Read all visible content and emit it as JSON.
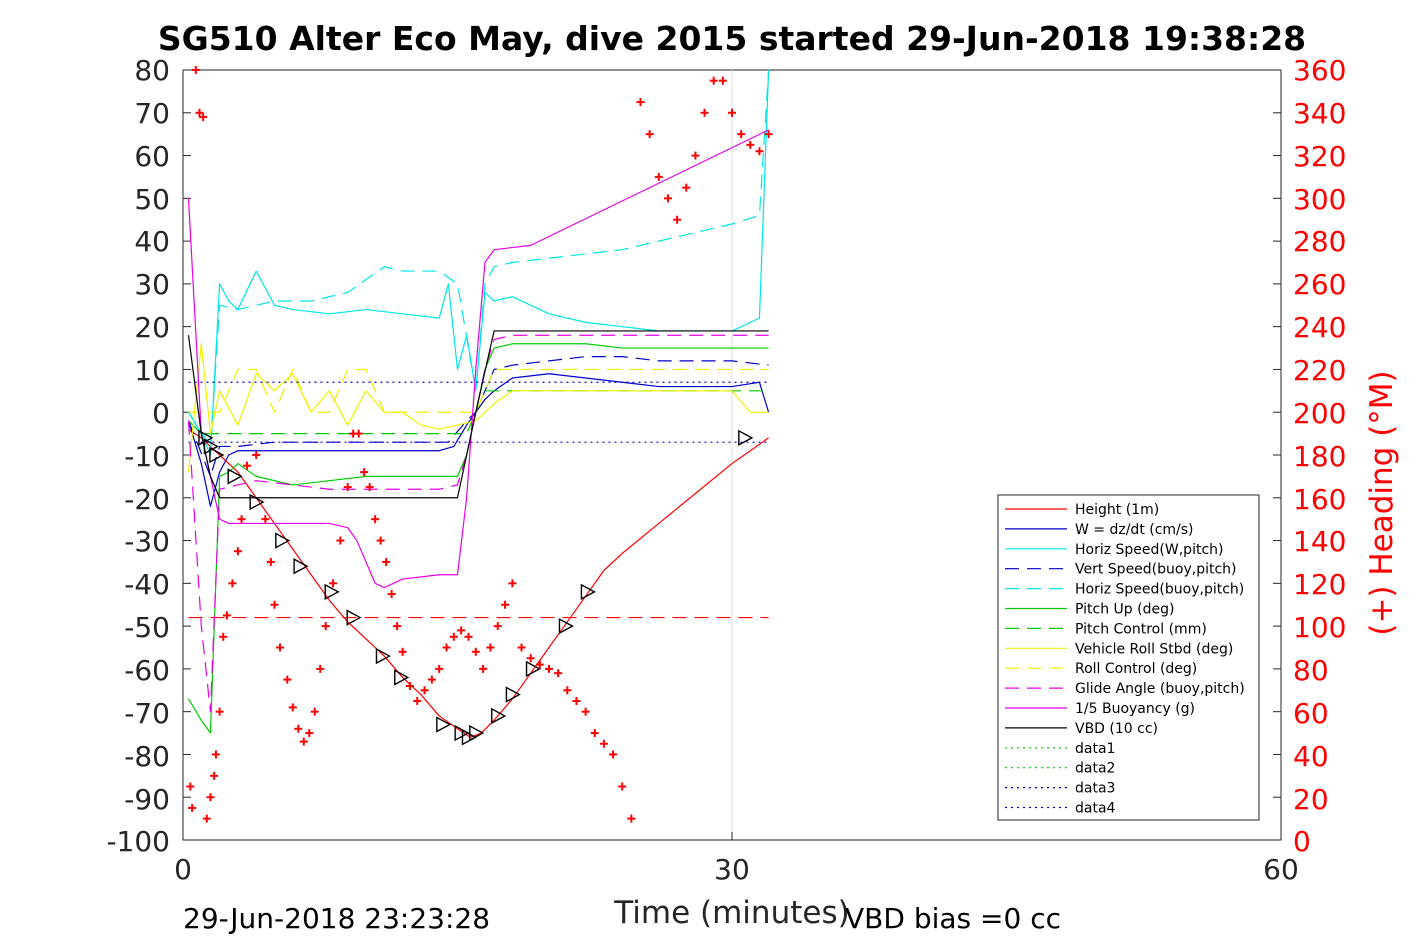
{
  "chart_data": {
    "type": "line",
    "title": "SG510 Alter Eco May, dive 2015 started 29-Jun-2018 19:38:28",
    "xlabel": "Time (minutes)",
    "ylabel": "",
    "ylabel_right": "(+) Heading (°M)",
    "xlim": [
      0,
      60
    ],
    "ylim": [
      -100,
      80
    ],
    "ylim_right": [
      0,
      360
    ],
    "xticks": [
      "0",
      "30",
      "60"
    ],
    "yticks": [
      "80",
      "70",
      "60",
      "50",
      "40",
      "30",
      "20",
      "10",
      "0",
      "-10",
      "-20",
      "-30",
      "-40",
      "-50",
      "-60",
      "-70",
      "-80",
      "-90",
      "-100"
    ],
    "yticks_right": [
      "360",
      "340",
      "320",
      "300",
      "280",
      "260",
      "240",
      "220",
      "200",
      "180",
      "160",
      "140",
      "120",
      "100",
      "80",
      "60",
      "40",
      "20",
      "0"
    ],
    "grid": "x-only",
    "legend_position": "lower-right",
    "footer_left": "29-Jun-2018 23:23:28",
    "footer_right": "VBD bias =0 cc",
    "series": [
      {
        "name": "Height (1m)",
        "color": "#ff0000",
        "style": "solid",
        "x": [
          0.3,
          1.0,
          1.5,
          2.0,
          3.0,
          4.0,
          5.0,
          6.0,
          7.0,
          8.0,
          9.0,
          10.0,
          11.0,
          12.0,
          13.0,
          14.0,
          15.0,
          15.7,
          16.3,
          17.0,
          18.0,
          19.0,
          20.0,
          21.0,
          22.0,
          23.0,
          24.0,
          26.0,
          28.0,
          30.0,
          31.0,
          32.0
        ],
        "y": [
          -4,
          -6,
          -8,
          -10,
          -14,
          -20,
          -26,
          -32,
          -38,
          -44,
          -49,
          -53,
          -57,
          -62,
          -66,
          -71,
          -74,
          -76,
          -75,
          -72,
          -67,
          -61,
          -55,
          -49,
          -43,
          -37,
          -33,
          -26,
          -19,
          -12,
          -9,
          -6
        ]
      },
      {
        "name": "W = dz/dt (cm/s)",
        "color": "#0000cc",
        "style": "solid",
        "x": [
          0.3,
          1.0,
          1.5,
          2.0,
          2.5,
          3.0,
          4.0,
          6.0,
          8.0,
          10.0,
          12.0,
          14.0,
          14.8,
          15.5,
          16.0,
          16.5,
          17.0,
          18.0,
          20.0,
          22.0,
          24.0,
          26.0,
          28.0,
          30.0,
          31.5,
          32.0
        ],
        "y": [
          -2,
          -12,
          -22,
          -14,
          -10,
          -9,
          -9,
          -9,
          -9,
          -9,
          -9,
          -9,
          -8,
          -3,
          0,
          3,
          5,
          8,
          9,
          8,
          7,
          6,
          6,
          6,
          7,
          0
        ]
      },
      {
        "name": "Horiz Speed(W,pitch)",
        "color": "#00e5e5",
        "style": "solid",
        "x": [
          0.3,
          1.0,
          1.5,
          2.0,
          2.5,
          3.0,
          4.0,
          5.0,
          6.0,
          8.0,
          10.0,
          12.0,
          14.0,
          14.5,
          15.0,
          15.5,
          16.0,
          16.5,
          17.0,
          18.0,
          20.0,
          22.0,
          24.0,
          26.0,
          28.0,
          30.0,
          31.5,
          32.0
        ],
        "y": [
          0,
          -5,
          -10,
          30,
          26,
          24,
          33,
          25,
          24,
          23,
          24,
          23,
          22,
          30,
          10,
          18,
          5,
          28,
          26,
          27,
          23,
          21,
          20,
          19,
          19,
          19,
          22,
          80
        ]
      },
      {
        "name": "Vert Speed(buoy,pitch)",
        "color": "#0000cc",
        "style": "dashed",
        "x": [
          0.3,
          1.5,
          2.0,
          3.0,
          5.0,
          7.0,
          9.0,
          11.0,
          13.0,
          14.5,
          15.5,
          16.0,
          16.5,
          17.0,
          18.0,
          20.0,
          22.0,
          24.0,
          26.0,
          28.0,
          30.0,
          32.0
        ],
        "y": [
          -2,
          -15,
          -8,
          -8,
          -7,
          -7,
          -7,
          -7,
          -7,
          -7,
          -2,
          0,
          5,
          10,
          11,
          12,
          13,
          13,
          12,
          12,
          12,
          11
        ]
      },
      {
        "name": "Horiz Speed(buoy,pitch)",
        "color": "#00e5e5",
        "style": "dashed",
        "x": [
          0.3,
          1.5,
          2.0,
          3.0,
          5.0,
          7.0,
          9.0,
          10.0,
          11.0,
          12.0,
          14.0,
          15.0,
          16.0,
          16.5,
          17.0,
          18.0,
          20.0,
          22.0,
          24.0,
          26.0,
          28.0,
          30.0,
          31.5,
          32.0
        ],
        "y": [
          0,
          -8,
          25,
          24,
          26,
          26,
          28,
          31,
          34,
          33,
          33,
          30,
          5,
          30,
          34,
          35,
          36,
          37,
          38,
          40,
          42,
          44,
          46,
          80
        ]
      },
      {
        "name": "Pitch Up (deg)",
        "color": "#00cc00",
        "style": "solid",
        "x": [
          0.3,
          1.0,
          1.5,
          2.0,
          2.5,
          3.0,
          4.0,
          6.0,
          8.0,
          10.0,
          12.0,
          14.0,
          15.0,
          15.5,
          16.0,
          16.5,
          17.0,
          18.0,
          20.0,
          22.0,
          24.0,
          26.0,
          28.0,
          30.0,
          32.0
        ],
        "y": [
          -67,
          -72,
          -75,
          -15,
          -14,
          -12,
          -15,
          -17,
          -16,
          -15,
          -15,
          -15,
          -15,
          -10,
          0,
          10,
          15,
          16,
          16,
          16,
          15,
          15,
          15,
          15,
          15
        ]
      },
      {
        "name": "Pitch Control (mm)",
        "color": "#00cc00",
        "style": "dashed",
        "x": [
          0.3,
          1.0,
          1.5,
          2.0,
          15.0,
          15.5,
          16.0,
          16.5,
          17.0,
          32.0
        ],
        "y": [
          -2,
          -5,
          -5,
          -5,
          -5,
          -5,
          0,
          5,
          5,
          5
        ]
      },
      {
        "name": "Vehicle Roll Stbd (deg)",
        "color": "#f0f000",
        "style": "solid",
        "x": [
          0.3,
          1.0,
          1.5,
          2.0,
          3.0,
          4.0,
          5.0,
          6.0,
          7.0,
          8.0,
          9.0,
          10.0,
          11.0,
          12.0,
          13.0,
          14.0,
          15.0,
          16.0,
          17.0,
          18.0,
          20.0,
          22.0,
          24.0,
          26.0,
          28.0,
          30.0,
          31.0,
          32.0
        ],
        "y": [
          -14,
          16,
          -5,
          5,
          -3,
          9,
          5,
          9,
          0,
          5,
          -3,
          5,
          0,
          0,
          -3,
          -4,
          -3,
          -2,
          2,
          5,
          5,
          5,
          5,
          5,
          5,
          5,
          0,
          0
        ]
      },
      {
        "name": "Roll Control (deg)",
        "color": "#f0f000",
        "style": "dashed",
        "x": [
          0.3,
          2.0,
          3.0,
          4.0,
          5.0,
          6.0,
          7.0,
          8.0,
          9.0,
          10.0,
          11.0,
          12.0,
          14.0,
          15.0,
          16.0,
          17.0,
          20.0,
          24.0,
          28.0,
          32.0
        ],
        "y": [
          0,
          0,
          10,
          10,
          0,
          10,
          0,
          0,
          10,
          10,
          0,
          0,
          0,
          0,
          0,
          10,
          10,
          10,
          10,
          10
        ]
      },
      {
        "name": "Glide Angle (buoy,pitch)",
        "color": "#e600e6",
        "style": "dashed",
        "x": [
          0.3,
          1.0,
          1.5,
          2.0,
          3.0,
          4.0,
          6.0,
          8.0,
          10.0,
          12.0,
          14.0,
          15.0,
          15.5,
          16.0,
          16.5,
          17.0,
          18.0,
          20.0,
          22.0,
          24.0,
          26.0,
          28.0,
          30.0,
          32.0
        ],
        "y": [
          -2,
          -50,
          -70,
          -18,
          -17,
          -16,
          -17,
          -18,
          -18,
          -18,
          -18,
          -17,
          -10,
          0,
          10,
          17,
          18,
          18,
          18,
          18,
          18,
          18,
          18,
          18
        ]
      },
      {
        "name": "1/5 Buoyancy (g)",
        "color": "#e600e6",
        "style": "solid",
        "x": [
          0.3,
          1.0,
          1.5,
          2.0,
          2.5,
          3.0,
          8.0,
          9.0,
          9.5,
          10.0,
          10.5,
          11.0,
          12.0,
          14.0,
          15.0,
          15.5,
          16.0,
          16.5,
          17.0,
          19.0,
          32.0
        ],
        "y": [
          50,
          -5,
          -15,
          -25,
          -26,
          -26,
          -26,
          -27,
          -30,
          -35,
          -40,
          -41,
          -39,
          -38,
          -38,
          -20,
          10,
          35,
          38,
          39,
          66
        ]
      },
      {
        "name": "VBD (10 cc)",
        "color": "#000000",
        "style": "solid",
        "x": [
          0.3,
          1.0,
          1.5,
          2.0,
          2.5,
          15.0,
          16.0,
          17.0,
          32.0
        ],
        "y": [
          18,
          -5,
          -15,
          -20,
          -20,
          -20,
          0,
          19,
          19
        ]
      },
      {
        "name": "data1",
        "color": "#00cc00",
        "style": "dotted",
        "x": [],
        "y": []
      },
      {
        "name": "data2",
        "color": "#00cc00",
        "style": "dotted",
        "x": [],
        "y": []
      },
      {
        "name": "data3",
        "color": "#0000cc",
        "style": "dotted",
        "x": [
          0.3,
          32.0
        ],
        "y": [
          7,
          7
        ]
      },
      {
        "name": "data4",
        "color": "#0000cc",
        "style": "dotted",
        "x": [
          0.3,
          32.0
        ],
        "y": [
          -7,
          -7
        ]
      }
    ],
    "reference_lines": [
      {
        "color": "#ff0000",
        "style": "dashed",
        "x": [
          0.3,
          32.0
        ],
        "y": [
          -48,
          -48
        ]
      }
    ],
    "triangles": {
      "color": "#000000",
      "x": [
        1.2,
        1.5,
        1.8,
        2.8,
        4.0,
        5.4,
        6.4,
        8.1,
        9.3,
        10.9,
        11.9,
        14.2,
        15.2,
        15.6,
        16.0,
        17.2,
        18.0,
        19.1,
        20.9,
        22.1,
        30.7
      ],
      "y": [
        -6,
        -8,
        -10,
        -15,
        -21,
        -30,
        -36,
        -42,
        -48,
        -57,
        -62,
        -73,
        -75,
        -76,
        -75,
        -71,
        -66,
        -60,
        -50,
        -42,
        -6
      ]
    },
    "heading_markers": {
      "color": "#ff0000",
      "axis": "right",
      "x": [
        0.4,
        0.5,
        0.7,
        0.9,
        1.1,
        1.3,
        1.5,
        1.7,
        1.8,
        2.0,
        2.2,
        2.4,
        2.7,
        3.0,
        3.2,
        3.5,
        4.0,
        4.5,
        4.8,
        5.0,
        5.3,
        5.7,
        6.0,
        6.3,
        6.6,
        6.9,
        7.2,
        7.5,
        7.8,
        8.2,
        8.6,
        9.0,
        9.3,
        9.6,
        9.9,
        10.2,
        10.5,
        10.8,
        11.1,
        11.4,
        11.7,
        12.0,
        12.4,
        12.8,
        13.2,
        13.6,
        14.0,
        14.4,
        14.8,
        15.2,
        15.6,
        16.0,
        16.4,
        16.8,
        17.2,
        17.6,
        18.0,
        18.5,
        19.0,
        19.5,
        20.0,
        20.5,
        21.0,
        21.5,
        22.0,
        22.5,
        23.0,
        23.5,
        24.0,
        24.5,
        25.0,
        25.5,
        26.0,
        26.5,
        27.0,
        27.5,
        28.0,
        28.5,
        29.0,
        29.5,
        30.0,
        30.5,
        31.0,
        31.5,
        32.0
      ],
      "y": [
        25,
        15,
        360,
        340,
        338,
        10,
        20,
        30,
        40,
        60,
        95,
        105,
        120,
        135,
        150,
        175,
        180,
        150,
        130,
        110,
        90,
        75,
        62,
        52,
        46,
        50,
        60,
        80,
        100,
        120,
        140,
        165,
        190,
        190,
        172,
        165,
        150,
        140,
        130,
        115,
        100,
        88,
        72,
        65,
        70,
        75,
        80,
        90,
        95,
        98,
        95,
        88,
        80,
        90,
        100,
        110,
        120,
        90,
        85,
        82,
        80,
        78,
        70,
        65,
        60,
        50,
        45,
        40,
        25,
        10,
        345,
        330,
        310,
        300,
        290,
        305,
        320,
        340,
        355,
        355,
        340,
        330,
        325,
        322,
        330
      ]
    }
  }
}
